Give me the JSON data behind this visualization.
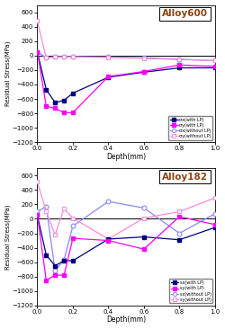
{
  "alloy600": {
    "title": "Alloy600",
    "depth": [
      0,
      0.05,
      0.1,
      0.15,
      0.2,
      0.4,
      0.6,
      0.8,
      1.0
    ],
    "sx_with": [
      50,
      -470,
      -650,
      -620,
      -520,
      -300,
      -230,
      -170,
      -170
    ],
    "sy_with": [
      50,
      -700,
      -730,
      -790,
      -790,
      -290,
      -220,
      -130,
      -150
    ],
    "sx_without": [
      50,
      -30,
      -20,
      -15,
      -15,
      -20,
      -30,
      -50,
      -70
    ],
    "sy_without": [
      480,
      -30,
      -20,
      -20,
      -20,
      -25,
      -40,
      -55,
      -70
    ],
    "ylim": [
      -1200,
      700
    ],
    "yticks": [
      -1200,
      -1000,
      -800,
      -600,
      -400,
      -200,
      0,
      200,
      400,
      600
    ],
    "legend_sx_with": "σx(with LP)",
    "legend_sy_with": "σy(with LP)",
    "legend_sx_without": "σx(without LP)",
    "legend_sy_without": "σy(without LP)"
  },
  "alloy182": {
    "title": "Alloy182",
    "depth": [
      0,
      0.05,
      0.1,
      0.15,
      0.2,
      0.4,
      0.6,
      0.8,
      1.0
    ],
    "sx_with": [
      50,
      -500,
      -650,
      -580,
      -580,
      -280,
      -250,
      -290,
      -120
    ],
    "sy_with": [
      50,
      -850,
      -780,
      -780,
      -270,
      -300,
      -420,
      30,
      -80
    ],
    "sx_without": [
      100,
      170,
      -720,
      -570,
      -100,
      240,
      150,
      -200,
      70
    ],
    "sy_without": [
      510,
      100,
      -220,
      140,
      10,
      -280,
      10,
      100,
      290
    ],
    "ylim": [
      -1200,
      700
    ],
    "yticks": [
      -1200,
      -1000,
      -800,
      -600,
      -400,
      -200,
      0,
      200,
      400,
      600
    ],
    "legend_sx_with": "sx(with LP)",
    "legend_sy_with": "sy(with LP)",
    "legend_sx_without": "sx(without LP)",
    "legend_sy_without": "sy(without LP)"
  },
  "color_dark_blue": "#000080",
  "color_magenta": "#FF00FF",
  "color_light_blue": "#8888FF",
  "color_light_magenta": "#FF88DD",
  "xlabel": "Depth(mm)",
  "ylabel": "Residual Stress(MPa)"
}
